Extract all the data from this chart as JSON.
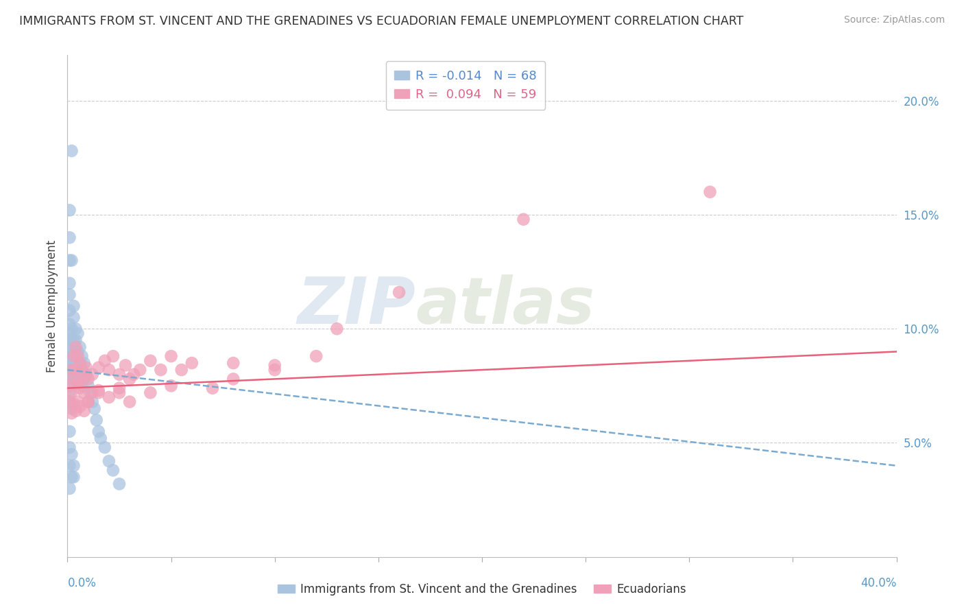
{
  "title": "IMMIGRANTS FROM ST. VINCENT AND THE GRENADINES VS ECUADORIAN FEMALE UNEMPLOYMENT CORRELATION CHART",
  "source": "Source: ZipAtlas.com",
  "ylabel": "Female Unemployment",
  "legend_blue_r": "R = -0.014",
  "legend_blue_n": "N = 68",
  "legend_pink_r": "R =  0.094",
  "legend_pink_n": "N = 59",
  "blue_color": "#aac4e0",
  "pink_color": "#f0a0b8",
  "blue_line_color": "#7aaad0",
  "pink_line_color": "#e8607a",
  "watermark_zip": "ZIP",
  "watermark_atlas": "atlas",
  "xlim": [
    0.0,
    0.4
  ],
  "ylim": [
    0.0,
    0.22
  ],
  "y_ticks": [
    0.0,
    0.05,
    0.1,
    0.15,
    0.2
  ],
  "y_tick_labels": [
    "",
    "5.0%",
    "10.0%",
    "15.0%",
    "20.0%"
  ],
  "blue_scatter_x": [
    0.002,
    0.001,
    0.001,
    0.001,
    0.001,
    0.001,
    0.001,
    0.002,
    0.001,
    0.001,
    0.001,
    0.001,
    0.001,
    0.001,
    0.001,
    0.001,
    0.001,
    0.001,
    0.001,
    0.002,
    0.002,
    0.002,
    0.002,
    0.002,
    0.002,
    0.003,
    0.003,
    0.003,
    0.003,
    0.003,
    0.003,
    0.004,
    0.004,
    0.004,
    0.004,
    0.005,
    0.005,
    0.005,
    0.005,
    0.006,
    0.006,
    0.006,
    0.007,
    0.007,
    0.007,
    0.008,
    0.008,
    0.009,
    0.01,
    0.011,
    0.012,
    0.013,
    0.014,
    0.015,
    0.016,
    0.018,
    0.02,
    0.022,
    0.025,
    0.002,
    0.001,
    0.001,
    0.001,
    0.001,
    0.002,
    0.002,
    0.003,
    0.003
  ],
  "blue_scatter_y": [
    0.178,
    0.152,
    0.14,
    0.13,
    0.12,
    0.115,
    0.108,
    0.13,
    0.102,
    0.098,
    0.095,
    0.092,
    0.088,
    0.085,
    0.082,
    0.078,
    0.075,
    0.072,
    0.068,
    0.1,
    0.095,
    0.09,
    0.085,
    0.082,
    0.078,
    0.11,
    0.105,
    0.095,
    0.09,
    0.085,
    0.08,
    0.1,
    0.095,
    0.088,
    0.082,
    0.098,
    0.09,
    0.085,
    0.08,
    0.092,
    0.085,
    0.078,
    0.088,
    0.082,
    0.075,
    0.085,
    0.078,
    0.08,
    0.075,
    0.072,
    0.068,
    0.065,
    0.06,
    0.055,
    0.052,
    0.048,
    0.042,
    0.038,
    0.032,
    0.065,
    0.055,
    0.048,
    0.04,
    0.03,
    0.045,
    0.035,
    0.04,
    0.035
  ],
  "pink_scatter_x": [
    0.001,
    0.001,
    0.002,
    0.002,
    0.003,
    0.003,
    0.004,
    0.004,
    0.005,
    0.005,
    0.006,
    0.006,
    0.007,
    0.008,
    0.008,
    0.009,
    0.01,
    0.01,
    0.012,
    0.012,
    0.015,
    0.015,
    0.018,
    0.02,
    0.022,
    0.025,
    0.025,
    0.028,
    0.03,
    0.032,
    0.035,
    0.04,
    0.045,
    0.05,
    0.055,
    0.06,
    0.08,
    0.1,
    0.12,
    0.002,
    0.003,
    0.004,
    0.005,
    0.006,
    0.008,
    0.01,
    0.015,
    0.02,
    0.025,
    0.03,
    0.04,
    0.05,
    0.07,
    0.08,
    0.1,
    0.13,
    0.16,
    0.22,
    0.31
  ],
  "pink_scatter_y": [
    0.075,
    0.068,
    0.082,
    0.072,
    0.088,
    0.078,
    0.092,
    0.082,
    0.088,
    0.076,
    0.085,
    0.074,
    0.082,
    0.079,
    0.072,
    0.083,
    0.078,
    0.068,
    0.08,
    0.072,
    0.083,
    0.073,
    0.086,
    0.082,
    0.088,
    0.08,
    0.072,
    0.084,
    0.078,
    0.08,
    0.082,
    0.086,
    0.082,
    0.088,
    0.082,
    0.085,
    0.085,
    0.084,
    0.088,
    0.063,
    0.067,
    0.064,
    0.068,
    0.066,
    0.064,
    0.068,
    0.072,
    0.07,
    0.074,
    0.068,
    0.072,
    0.075,
    0.074,
    0.078,
    0.082,
    0.1,
    0.116,
    0.148,
    0.16
  ],
  "blue_trend_x": [
    0.0,
    0.4
  ],
  "blue_trend_y": [
    0.082,
    0.04
  ],
  "pink_trend_x": [
    0.0,
    0.4
  ],
  "pink_trend_y": [
    0.074,
    0.09
  ],
  "figsize": [
    14.06,
    8.92
  ],
  "dpi": 100
}
